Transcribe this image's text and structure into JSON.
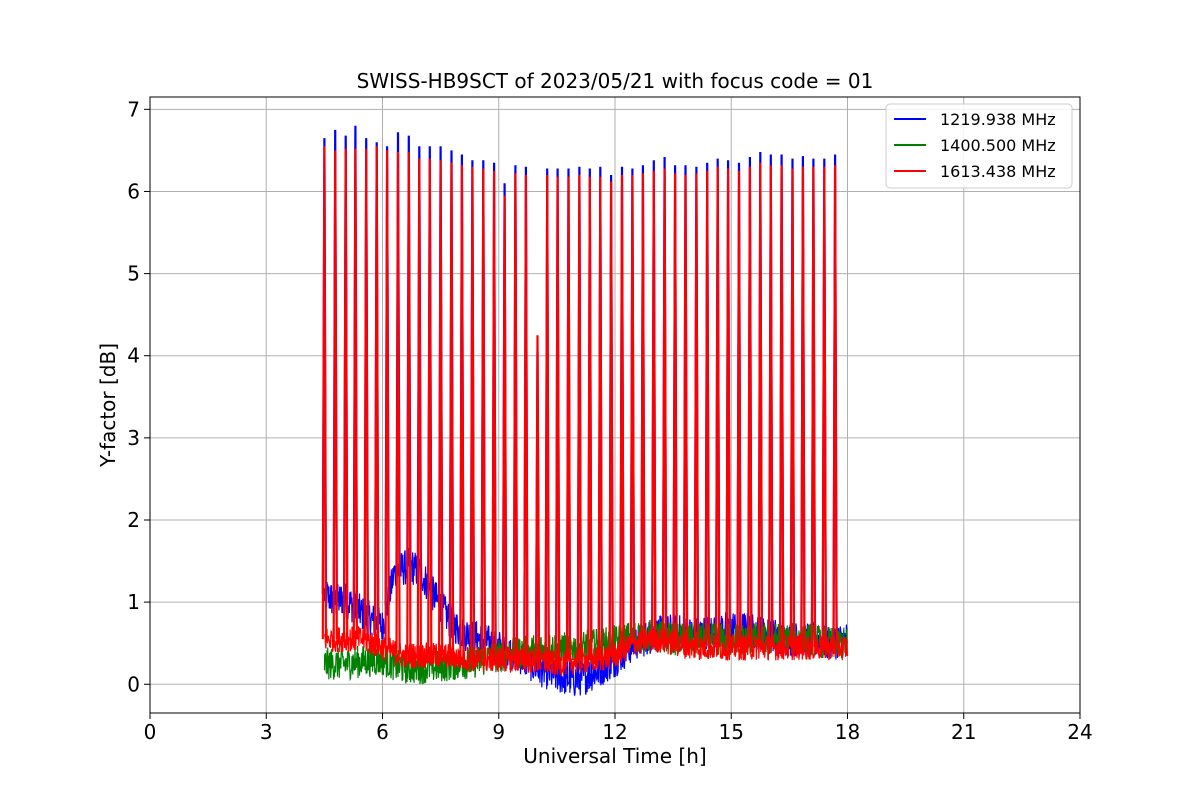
{
  "chart_data": {
    "type": "line",
    "title": "SWISS-HB9SCT of 2023/05/21 with focus code = 01",
    "xlabel": "Universal Time [h]",
    "ylabel": "Y-factor [dB]",
    "xlim": [
      0,
      24
    ],
    "ylim": [
      -0.35,
      7.15
    ],
    "xticks": [
      0,
      3,
      6,
      9,
      12,
      15,
      18,
      21,
      24
    ],
    "yticks": [
      0,
      1,
      2,
      3,
      4,
      5,
      6,
      7
    ],
    "grid": true,
    "legend_position": "top-right",
    "series": [
      {
        "name": "1219.938 MHz",
        "color": "#0000ff",
        "baseline": [
          [
            4.5,
            1.1
          ],
          [
            4.8,
            1.0
          ],
          [
            5.0,
            1.05
          ],
          [
            5.5,
            0.85
          ],
          [
            6.0,
            0.7
          ],
          [
            6.3,
            1.35
          ],
          [
            6.7,
            1.45
          ],
          [
            7.0,
            1.35
          ],
          [
            7.3,
            1.1
          ],
          [
            7.7,
            0.8
          ],
          [
            8.0,
            0.65
          ],
          [
            8.5,
            0.55
          ],
          [
            9.0,
            0.45
          ],
          [
            9.5,
            0.35
          ],
          [
            10.0,
            0.2
          ],
          [
            10.5,
            0.1
          ],
          [
            11.0,
            0.05
          ],
          [
            11.5,
            0.15
          ],
          [
            12.0,
            0.3
          ],
          [
            12.5,
            0.5
          ],
          [
            13.0,
            0.6
          ],
          [
            13.5,
            0.65
          ],
          [
            14.0,
            0.6
          ],
          [
            14.5,
            0.65
          ],
          [
            15.0,
            0.7
          ],
          [
            15.5,
            0.65
          ],
          [
            16.0,
            0.6
          ],
          [
            16.5,
            0.55
          ],
          [
            17.0,
            0.55
          ],
          [
            17.5,
            0.5
          ],
          [
            18.0,
            0.55
          ]
        ],
        "noise": 0.22,
        "spikes": [
          [
            4.5,
            6.65
          ],
          [
            4.78,
            6.75
          ],
          [
            5.05,
            6.68
          ],
          [
            5.3,
            6.8
          ],
          [
            5.58,
            6.65
          ],
          [
            5.85,
            6.6
          ],
          [
            6.12,
            6.55
          ],
          [
            6.4,
            6.72
          ],
          [
            6.68,
            6.68
          ],
          [
            6.95,
            6.55
          ],
          [
            7.22,
            6.55
          ],
          [
            7.5,
            6.55
          ],
          [
            7.78,
            6.5
          ],
          [
            8.05,
            6.45
          ],
          [
            8.32,
            6.38
          ],
          [
            8.6,
            6.38
          ],
          [
            8.88,
            6.35
          ],
          [
            9.15,
            6.1
          ],
          [
            9.43,
            6.32
          ],
          [
            9.7,
            6.3
          ],
          [
            10.0,
            4.05
          ],
          [
            10.25,
            6.28
          ],
          [
            10.52,
            6.28
          ],
          [
            10.8,
            6.28
          ],
          [
            11.08,
            6.3
          ],
          [
            11.35,
            6.28
          ],
          [
            11.62,
            6.3
          ],
          [
            11.9,
            6.2
          ],
          [
            12.18,
            6.3
          ],
          [
            12.45,
            6.28
          ],
          [
            12.72,
            6.32
          ],
          [
            13.0,
            6.38
          ],
          [
            13.28,
            6.42
          ],
          [
            13.55,
            6.32
          ],
          [
            13.82,
            6.32
          ],
          [
            14.1,
            6.3
          ],
          [
            14.38,
            6.35
          ],
          [
            14.65,
            6.4
          ],
          [
            14.92,
            6.38
          ],
          [
            15.2,
            6.35
          ],
          [
            15.48,
            6.42
          ],
          [
            15.75,
            6.48
          ],
          [
            16.02,
            6.45
          ],
          [
            16.3,
            6.45
          ],
          [
            16.58,
            6.4
          ],
          [
            16.85,
            6.43
          ],
          [
            17.12,
            6.4
          ],
          [
            17.4,
            6.4
          ],
          [
            17.68,
            6.45
          ]
        ]
      },
      {
        "name": "1400.500 MHz",
        "color": "#008000",
        "baseline": [
          [
            4.5,
            0.25
          ],
          [
            5.0,
            0.25
          ],
          [
            5.5,
            0.28
          ],
          [
            6.0,
            0.3
          ],
          [
            6.5,
            0.2
          ],
          [
            7.0,
            0.2
          ],
          [
            7.5,
            0.22
          ],
          [
            8.0,
            0.25
          ],
          [
            8.5,
            0.28
          ],
          [
            9.0,
            0.35
          ],
          [
            9.5,
            0.38
          ],
          [
            10.0,
            0.42
          ],
          [
            10.5,
            0.45
          ],
          [
            11.0,
            0.45
          ],
          [
            11.5,
            0.48
          ],
          [
            12.0,
            0.52
          ],
          [
            12.5,
            0.58
          ],
          [
            13.0,
            0.6
          ],
          [
            13.5,
            0.55
          ],
          [
            14.0,
            0.55
          ],
          [
            14.5,
            0.55
          ],
          [
            15.0,
            0.55
          ],
          [
            15.5,
            0.55
          ],
          [
            16.0,
            0.55
          ],
          [
            16.5,
            0.55
          ],
          [
            17.0,
            0.55
          ],
          [
            17.5,
            0.5
          ],
          [
            18.0,
            0.5
          ]
        ],
        "noise": 0.2,
        "spikes": []
      },
      {
        "name": "1613.438 MHz",
        "color": "#ff0000",
        "baseline": [
          [
            4.5,
            0.55
          ],
          [
            5.0,
            0.55
          ],
          [
            5.5,
            0.55
          ],
          [
            6.0,
            0.45
          ],
          [
            6.5,
            0.35
          ],
          [
            7.0,
            0.35
          ],
          [
            7.5,
            0.35
          ],
          [
            8.0,
            0.32
          ],
          [
            8.5,
            0.3
          ],
          [
            9.0,
            0.3
          ],
          [
            9.5,
            0.3
          ],
          [
            10.0,
            0.28
          ],
          [
            10.5,
            0.25
          ],
          [
            11.0,
            0.28
          ],
          [
            11.5,
            0.3
          ],
          [
            12.0,
            0.35
          ],
          [
            12.5,
            0.5
          ],
          [
            13.0,
            0.55
          ],
          [
            13.5,
            0.5
          ],
          [
            14.0,
            0.45
          ],
          [
            14.5,
            0.45
          ],
          [
            15.0,
            0.45
          ],
          [
            15.5,
            0.45
          ],
          [
            16.0,
            0.45
          ],
          [
            16.5,
            0.45
          ],
          [
            17.0,
            0.45
          ],
          [
            17.5,
            0.45
          ],
          [
            18.0,
            0.45
          ]
        ],
        "noise": 0.16,
        "spikes": [
          [
            4.5,
            6.55
          ],
          [
            4.78,
            6.5
          ],
          [
            5.05,
            6.52
          ],
          [
            5.3,
            6.52
          ],
          [
            5.58,
            6.52
          ],
          [
            5.85,
            6.55
          ],
          [
            6.12,
            6.5
          ],
          [
            6.4,
            6.48
          ],
          [
            6.68,
            6.48
          ],
          [
            6.95,
            6.4
          ],
          [
            7.22,
            6.4
          ],
          [
            7.5,
            6.38
          ],
          [
            7.78,
            6.35
          ],
          [
            8.05,
            6.32
          ],
          [
            8.32,
            6.3
          ],
          [
            8.6,
            6.28
          ],
          [
            8.88,
            6.25
          ],
          [
            9.15,
            5.95
          ],
          [
            9.43,
            6.22
          ],
          [
            9.7,
            6.2
          ],
          [
            10.0,
            4.25
          ],
          [
            10.25,
            6.2
          ],
          [
            10.52,
            6.18
          ],
          [
            10.8,
            6.18
          ],
          [
            11.08,
            6.2
          ],
          [
            11.35,
            6.18
          ],
          [
            11.62,
            6.18
          ],
          [
            11.9,
            6.12
          ],
          [
            12.18,
            6.2
          ],
          [
            12.45,
            6.2
          ],
          [
            12.72,
            6.22
          ],
          [
            13.0,
            6.25
          ],
          [
            13.28,
            6.28
          ],
          [
            13.55,
            6.22
          ],
          [
            13.82,
            6.2
          ],
          [
            14.1,
            6.22
          ],
          [
            14.38,
            6.25
          ],
          [
            14.65,
            6.3
          ],
          [
            14.92,
            6.28
          ],
          [
            15.2,
            6.25
          ],
          [
            15.48,
            6.3
          ],
          [
            15.75,
            6.35
          ],
          [
            16.02,
            6.32
          ],
          [
            16.3,
            6.32
          ],
          [
            16.58,
            6.28
          ],
          [
            16.85,
            6.3
          ],
          [
            17.12,
            6.3
          ],
          [
            17.4,
            6.3
          ],
          [
            17.68,
            6.32
          ]
        ]
      }
    ]
  }
}
